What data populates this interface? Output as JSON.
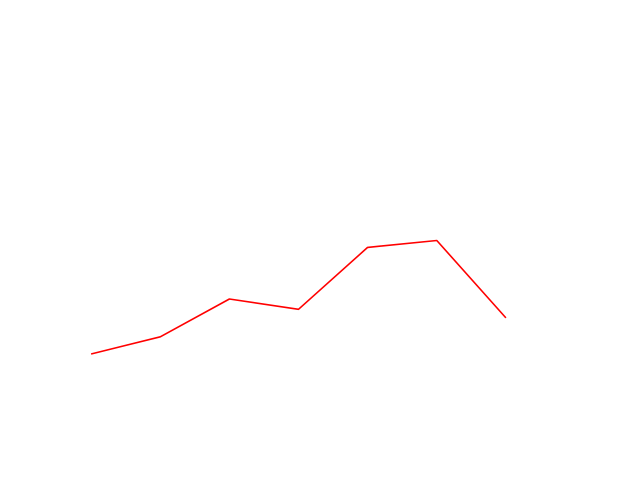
{
  "chart_data": {
    "type": "line",
    "x": [
      1,
      2,
      3,
      4,
      5,
      6,
      7
    ],
    "series": [
      {
        "values": [
          2.0,
          3.0,
          5.2,
          4.6,
          8.2,
          8.6,
          4.1
        ],
        "color": "#ff0000"
      }
    ],
    "xlim": [
      0,
      8
    ],
    "ylim": [
      -3,
      22
    ],
    "grid": false,
    "axes_visible": false
  }
}
